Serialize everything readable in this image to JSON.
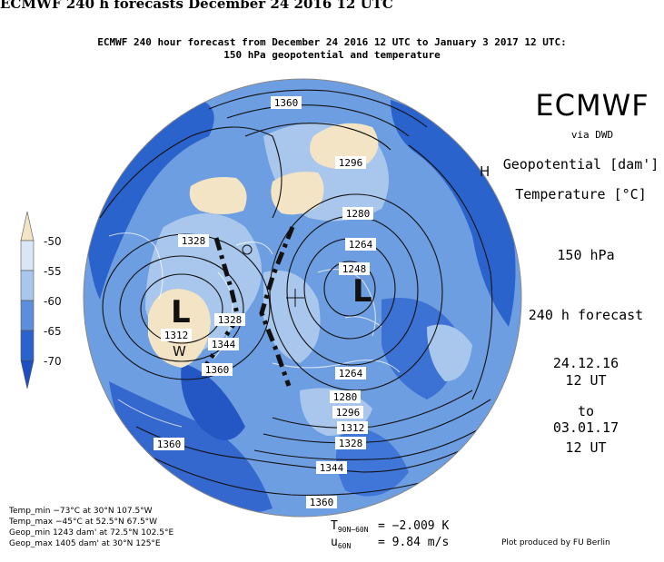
{
  "header": {
    "title": "ECMWF 240 h forecasts December 24 2016 12 UTC",
    "subtitle_line1": "ECMWF 240 hour forecast from December 24 2016 12 UTC to January 3 2017 12 UTC:",
    "subtitle_line2": "150 hPa geopotential and temperature"
  },
  "branding": {
    "logo_text": "ECMWF",
    "via": "via DWD"
  },
  "legend": {
    "geopotential": "Geopotential [dam']",
    "temperature": "Temperature [°C]",
    "ticks": [
      "-50",
      "-55",
      "-60",
      "-65",
      "-70"
    ],
    "colors": [
      "#f2e4c4",
      "#d9e6f6",
      "#a9c7ec",
      "#5b8fdb",
      "#2b63cc",
      "#1d4fc0"
    ]
  },
  "info": {
    "level": "150 hPa",
    "forecast": "240 h forecast",
    "start_date": "24.12.16",
    "start_time": "12 UT",
    "to": "to",
    "valid_date": "03.01.17",
    "valid_time": "12 UT"
  },
  "map": {
    "contour_labels": [
      "1360",
      "1296",
      "1280",
      "1264",
      "1248",
      "1328",
      "1312",
      "1328",
      "1344",
      "1360",
      "1264",
      "1280",
      "1296",
      "1312",
      "1328",
      "1360",
      "1360",
      "1344",
      "1360"
    ],
    "centers": {
      "low": "L",
      "high": "H",
      "warm": "W"
    }
  },
  "stats": {
    "temp_min": "Temp_min −73°C at 30°N 107.5°W",
    "temp_max": "Temp_max −45°C at 52.5°N 67.5°W",
    "geop_min": "Geop_min 1243 dam' at 72.5°N 102.5°E",
    "geop_max": "Geop_max 1405 dam' at 30°N 125°E"
  },
  "metrics": {
    "t_symbol": "T",
    "t_sub": "90N−60N",
    "t_value": "= −2.009 K",
    "u_symbol": "u",
    "u_sub": "60N",
    "u_value": "= 9.84 m/s"
  },
  "credit": "Plot produced by FU Berlin"
}
